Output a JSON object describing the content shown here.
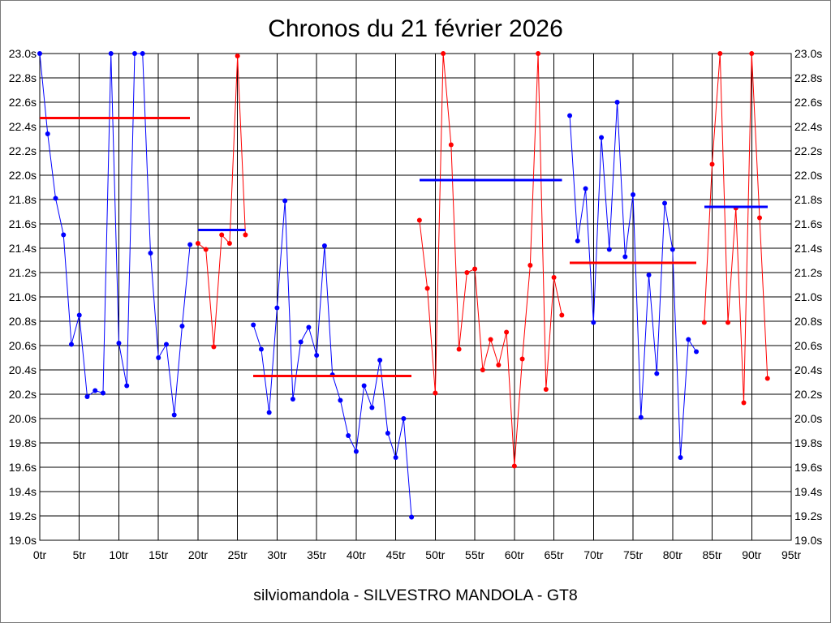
{
  "chart_data": {
    "type": "line",
    "title": "Chronos du 21 février 2026",
    "xlabel": "silviomandola - SILVESTRO MANDOLA - GT8",
    "xlim": [
      0,
      95
    ],
    "ylim": [
      19.0,
      23.0
    ],
    "grid": true,
    "xtick_labels": [
      "0tr",
      "5tr",
      "10tr",
      "15tr",
      "20tr",
      "25tr",
      "30tr",
      "35tr",
      "40tr",
      "45tr",
      "50tr",
      "55tr",
      "60tr",
      "65tr",
      "70tr",
      "75tr",
      "80tr",
      "85tr",
      "90tr",
      "95tr"
    ],
    "ytick_labels": [
      "19.0s",
      "19.2s",
      "19.4s",
      "19.6s",
      "19.8s",
      "20.0s",
      "20.2s",
      "20.4s",
      "20.6s",
      "20.8s",
      "21.0s",
      "21.2s",
      "21.4s",
      "21.6s",
      "21.8s",
      "22.0s",
      "22.2s",
      "22.4s",
      "22.6s",
      "22.8s",
      "23.0s"
    ],
    "series": [
      {
        "color": "#0000ff",
        "average_color": "#ff0000",
        "average": 22.47,
        "x": [
          0,
          1,
          2,
          3,
          4,
          5,
          6,
          7,
          8,
          9,
          10,
          11,
          12,
          13,
          14,
          15,
          16,
          17,
          18,
          19
        ],
        "y": [
          23.0,
          22.34,
          21.81,
          21.51,
          20.61,
          20.85,
          20.18,
          20.23,
          20.21,
          23.0,
          20.62,
          20.27,
          23.0,
          23.0,
          21.36,
          20.5,
          20.61,
          20.03,
          20.76,
          21.43
        ]
      },
      {
        "color": "#ff0000",
        "average_color": "#0000ff",
        "average": 21.55,
        "x": [
          20,
          21,
          22,
          23,
          24,
          25,
          26
        ],
        "y": [
          21.44,
          21.39,
          20.59,
          21.51,
          21.44,
          22.98,
          21.51
        ]
      },
      {
        "color": "#0000ff",
        "average_color": "#ff0000",
        "average": 20.35,
        "x": [
          27,
          28,
          29,
          30,
          31,
          32,
          33,
          34,
          35,
          36,
          37,
          38,
          39,
          40,
          41,
          42,
          43,
          44,
          45,
          46,
          47
        ],
        "y": [
          20.77,
          20.57,
          20.05,
          20.91,
          21.79,
          20.16,
          20.63,
          20.75,
          20.52,
          21.42,
          20.36,
          20.15,
          19.86,
          19.73,
          20.27,
          20.09,
          20.48,
          19.88,
          19.68,
          20.0,
          19.19
        ]
      },
      {
        "color": "#ff0000",
        "average_color": "#0000ff",
        "average": 21.96,
        "x": [
          48,
          49,
          50,
          51,
          52,
          53,
          54,
          55,
          56,
          57,
          58,
          59,
          60,
          61,
          62,
          63,
          64,
          65,
          66
        ],
        "y": [
          21.63,
          21.07,
          20.21,
          23.0,
          22.25,
          20.57,
          21.2,
          21.23,
          20.4,
          20.65,
          20.44,
          20.71,
          19.61,
          20.49,
          21.26,
          23.0,
          20.24,
          21.16,
          20.85
        ]
      },
      {
        "color": "#0000ff",
        "average_color": "#ff0000",
        "average": 21.28,
        "x": [
          67,
          68,
          69,
          70,
          71,
          72,
          73,
          74,
          75,
          76,
          77,
          78,
          79,
          80,
          81,
          82,
          83
        ],
        "y": [
          22.49,
          21.46,
          21.89,
          20.79,
          22.31,
          21.39,
          22.6,
          21.33,
          21.84,
          20.01,
          21.18,
          20.37,
          21.77,
          21.39,
          19.68,
          20.65,
          20.55
        ]
      },
      {
        "color": "#ff0000",
        "average_color": "#0000ff",
        "average": 21.74,
        "x": [
          84,
          85,
          86,
          87,
          88,
          89,
          90,
          91,
          92
        ],
        "y": [
          20.79,
          22.09,
          23.0,
          20.79,
          21.73,
          20.13,
          23.0,
          21.65,
          20.33
        ]
      }
    ]
  }
}
